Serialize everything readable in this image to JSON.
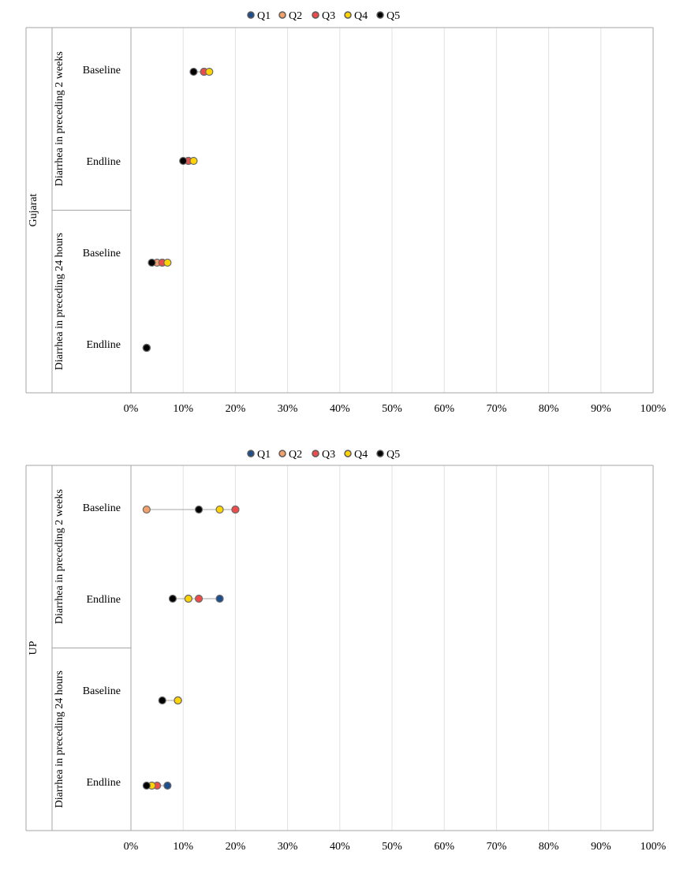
{
  "chart_data": [
    {
      "type": "scatter",
      "region": "Gujarat",
      "groups": [
        "Diarrhea in preceding 2 weeks",
        "Diarrhea in preceding 24 hours"
      ],
      "categories": [
        "Baseline",
        "Endline"
      ],
      "x_ticks": [
        "0%",
        "10%",
        "20%",
        "30%",
        "40%",
        "50%",
        "60%",
        "70%",
        "80%",
        "90%",
        "100%"
      ],
      "xlim": [
        0,
        100
      ],
      "grid": true,
      "legend_position": "top",
      "series": [
        {
          "name": "Q1",
          "color": "#1f4e8c",
          "values": [
            [
              14,
              11
            ],
            [
              6,
              3
            ]
          ]
        },
        {
          "name": "Q2",
          "color": "#f4a06a",
          "values": [
            [
              14,
              11
            ],
            [
              5,
              3
            ]
          ]
        },
        {
          "name": "Q3",
          "color": "#f04b4b",
          "values": [
            [
              14,
              11
            ],
            [
              6,
              3
            ]
          ]
        },
        {
          "name": "Q4",
          "color": "#ffd400",
          "values": [
            [
              15,
              12
            ],
            [
              7,
              3
            ]
          ]
        },
        {
          "name": "Q5",
          "color": "#000000",
          "values": [
            [
              12,
              10
            ],
            [
              4,
              3
            ]
          ]
        }
      ]
    },
    {
      "type": "scatter",
      "region": "UP",
      "groups": [
        "Diarrhea in preceding 2 weeks",
        "Diarrhea in preceding 24 hours"
      ],
      "categories": [
        "Baseline",
        "Endline"
      ],
      "x_ticks": [
        "0%",
        "10%",
        "20%",
        "30%",
        "40%",
        "50%",
        "60%",
        "70%",
        "80%",
        "90%",
        "100%"
      ],
      "xlim": [
        0,
        100
      ],
      "grid": true,
      "legend_position": "top",
      "series": [
        {
          "name": "Q1",
          "color": "#1f4e8c",
          "values": [
            [
              20,
              17
            ],
            [
              9,
              7
            ]
          ]
        },
        {
          "name": "Q2",
          "color": "#f4a06a",
          "values": [
            [
              3,
              11
            ],
            [
              9,
              4
            ]
          ]
        },
        {
          "name": "Q3",
          "color": "#f04b4b",
          "values": [
            [
              20,
              13
            ],
            [
              9,
              5
            ]
          ]
        },
        {
          "name": "Q4",
          "color": "#ffd400",
          "values": [
            [
              17,
              11
            ],
            [
              9,
              4
            ]
          ]
        },
        {
          "name": "Q5",
          "color": "#000000",
          "values": [
            [
              13,
              8
            ],
            [
              6,
              3
            ]
          ]
        }
      ]
    }
  ]
}
